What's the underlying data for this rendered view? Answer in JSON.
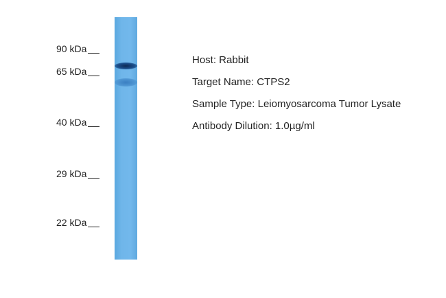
{
  "blot": {
    "lane_color": "#6fb6ea",
    "bands": [
      {
        "approx_kda": 68,
        "intensity": "strong"
      },
      {
        "approx_kda": 60,
        "intensity": "weak"
      }
    ]
  },
  "markers": [
    "90 kDa",
    "65 kDa",
    "40 kDa",
    "29 kDa",
    "22 kDa"
  ],
  "info": {
    "host": "Host: Rabbit",
    "target": "Target Name: CTPS2",
    "sample": "Sample Type: Leiomyosarcoma Tumor Lysate",
    "dilution": "Antibody Dilution: 1.0µg/ml"
  }
}
